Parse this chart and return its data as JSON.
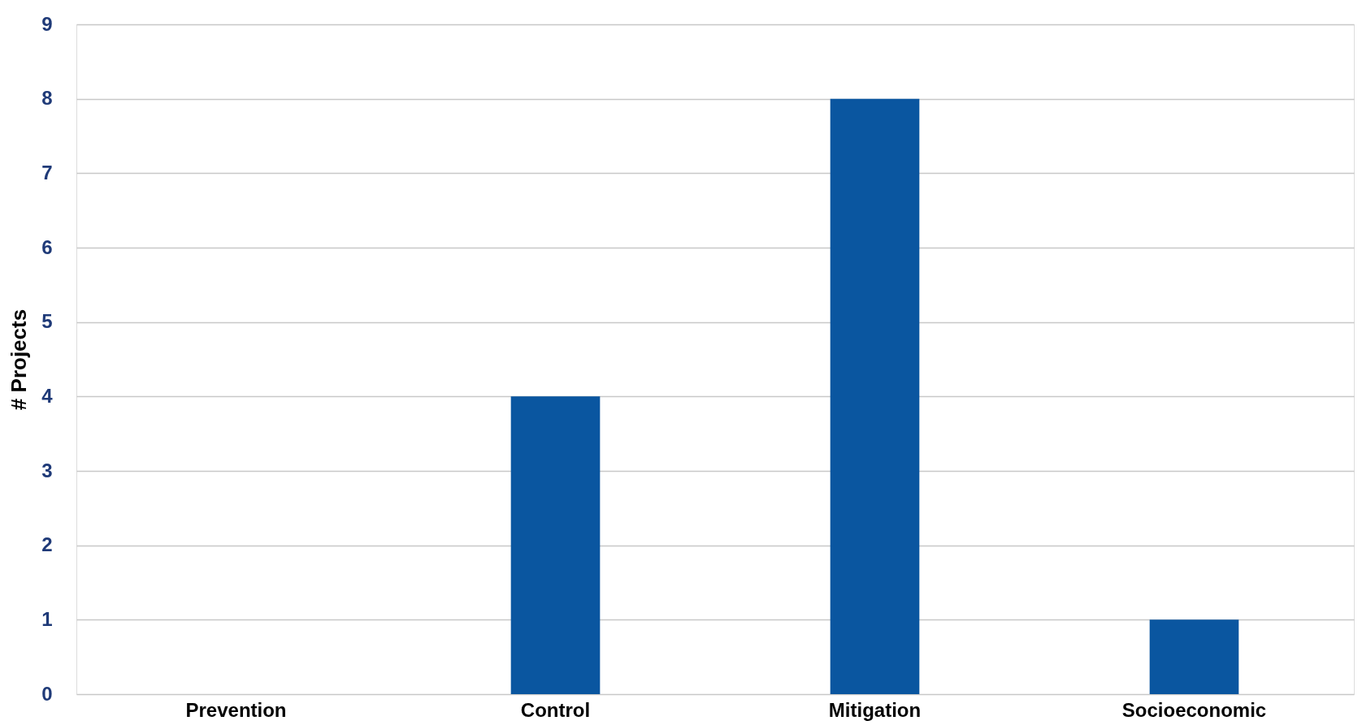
{
  "chart_data": {
    "type": "bar",
    "ylabel": "# Projects",
    "categories": [
      "Prevention",
      "Control",
      "Mitigation",
      "Socioeconomic"
    ],
    "values": [
      0,
      4,
      8,
      1
    ],
    "color": "#0a56a0",
    "ylim": [
      0,
      9
    ],
    "yticks": [
      0,
      1,
      2,
      3,
      4,
      5,
      6,
      7,
      8,
      9
    ],
    "grid": "y"
  }
}
